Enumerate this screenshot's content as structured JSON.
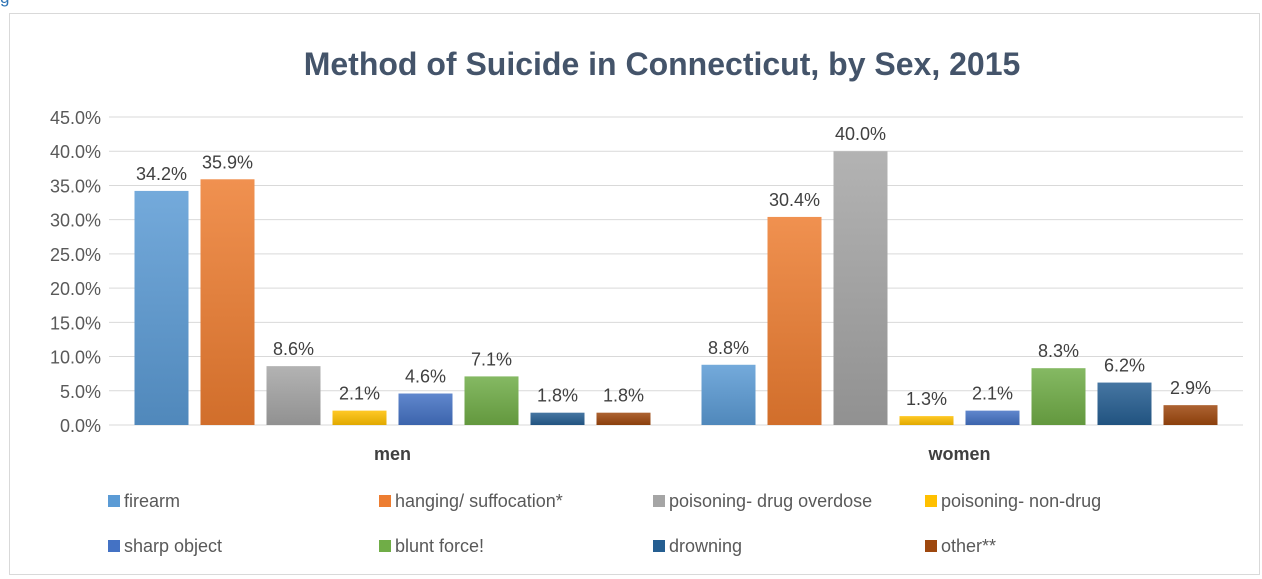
{
  "snippet_text": "g",
  "chart_data": {
    "type": "bar",
    "title": "Method of Suicide in Connecticut, by Sex, 2015",
    "categories": [
      "men",
      "women"
    ],
    "ylim": [
      0,
      45
    ],
    "yticks": [
      "0.0%",
      "5.0%",
      "10.0%",
      "15.0%",
      "20.0%",
      "25.0%",
      "30.0%",
      "35.0%",
      "40.0%",
      "45.0%"
    ],
    "grid": true,
    "legend_position": "bottom",
    "series": [
      {
        "name": "firearm",
        "values": [
          34.2,
          8.8
        ],
        "labels": [
          "34.2%",
          "8.8%"
        ],
        "color": "#5b9bd5"
      },
      {
        "name": "hanging/ suffocation*",
        "values": [
          35.9,
          30.4
        ],
        "labels": [
          "35.9%",
          "30.4%"
        ],
        "color": "#ed7d31"
      },
      {
        "name": "poisoning- drug overdose",
        "values": [
          8.6,
          40.0
        ],
        "labels": [
          "8.6%",
          "40.0%"
        ],
        "color": "#a5a5a5"
      },
      {
        "name": "poisoning- non-drug",
        "values": [
          2.1,
          1.3
        ],
        "labels": [
          "2.1%",
          "1.3%"
        ],
        "color": "#ffc000"
      },
      {
        "name": "sharp object",
        "values": [
          4.6,
          2.1
        ],
        "labels": [
          "4.6%",
          "2.1%"
        ],
        "color": "#4472c4"
      },
      {
        "name": "blunt force!",
        "values": [
          7.1,
          8.3
        ],
        "labels": [
          "7.1%",
          "8.3%"
        ],
        "color": "#70ad47"
      },
      {
        "name": "drowning",
        "values": [
          1.8,
          6.2
        ],
        "labels": [
          "1.8%",
          "6.2%"
        ],
        "color": "#255e91"
      },
      {
        "name": "other**",
        "values": [
          1.8,
          2.9
        ],
        "labels": [
          "1.8%",
          "2.9%"
        ],
        "color": "#9e480e"
      }
    ]
  }
}
